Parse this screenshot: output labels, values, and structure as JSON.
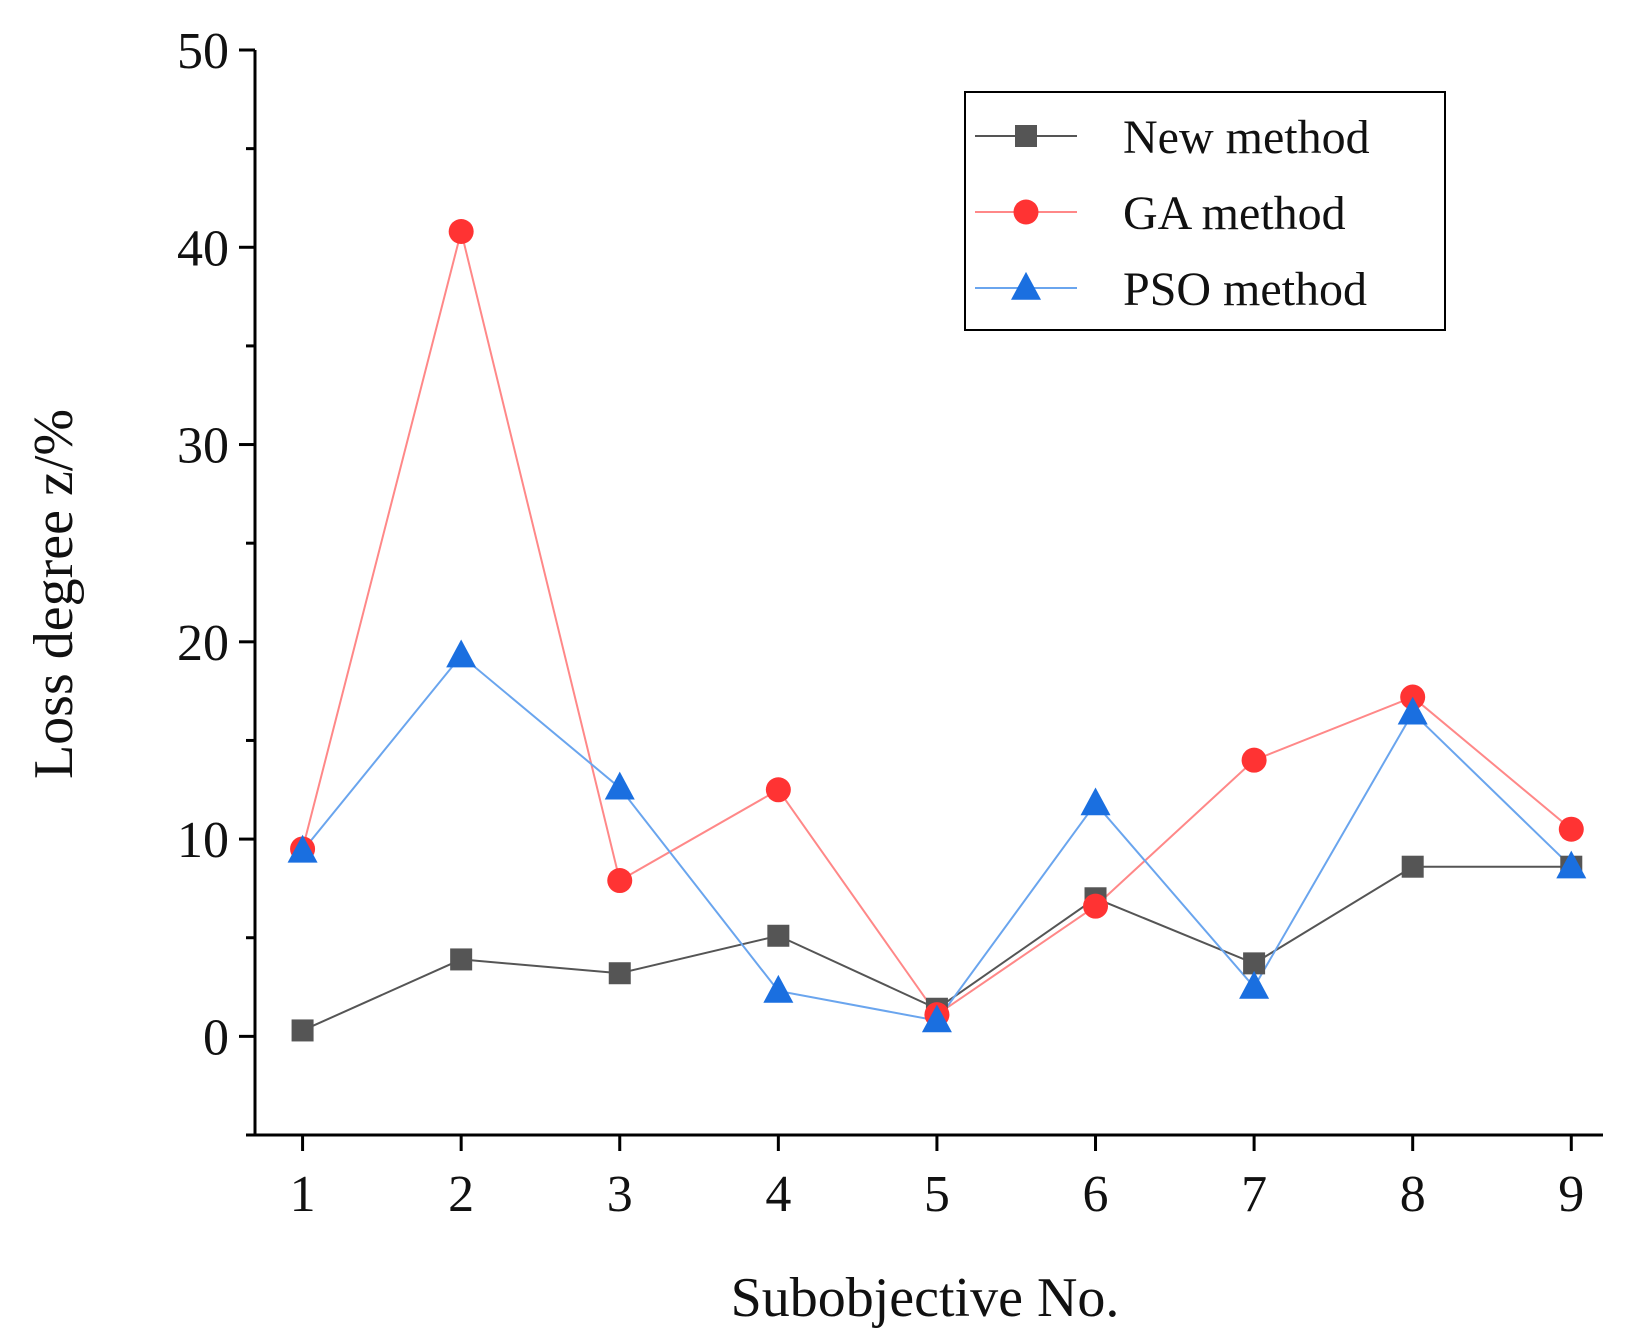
{
  "chart_data": {
    "type": "line",
    "title": "",
    "xlabel": "Subobjective No.",
    "ylabel": "Loss degree z/%",
    "x": [
      1,
      2,
      3,
      4,
      5,
      6,
      7,
      8,
      9
    ],
    "x_tick_labels": [
      "1",
      "2",
      "3",
      "4",
      "5",
      "6",
      "7",
      "8",
      "9"
    ],
    "xlim": [
      0.7,
      9.2
    ],
    "ylim": [
      -5,
      50
    ],
    "y_ticks": [
      0,
      10,
      20,
      30,
      40,
      50
    ],
    "y_tick_labels": [
      "0",
      "10",
      "20",
      "30",
      "40",
      "50"
    ],
    "grid": false,
    "legend_position": "top-right",
    "series": [
      {
        "name": "New method",
        "marker": "square",
        "line_color": "#555555",
        "marker_color": "#555555",
        "values": [
          0.3,
          3.9,
          3.2,
          5.1,
          1.4,
          7.0,
          3.7,
          8.6,
          8.6
        ]
      },
      {
        "name": "GA method",
        "marker": "circle",
        "line_color": "#ff8888",
        "marker_color": "#ff3333",
        "values": [
          9.5,
          40.8,
          7.9,
          12.5,
          1.1,
          6.6,
          14.0,
          17.2,
          10.5
        ]
      },
      {
        "name": "PSO method",
        "marker": "triangle",
        "line_color": "#6aa5ee",
        "marker_color": "#1a6fe0",
        "values": [
          9.4,
          19.3,
          12.6,
          2.3,
          0.8,
          11.8,
          2.5,
          16.4,
          8.6
        ]
      }
    ]
  }
}
